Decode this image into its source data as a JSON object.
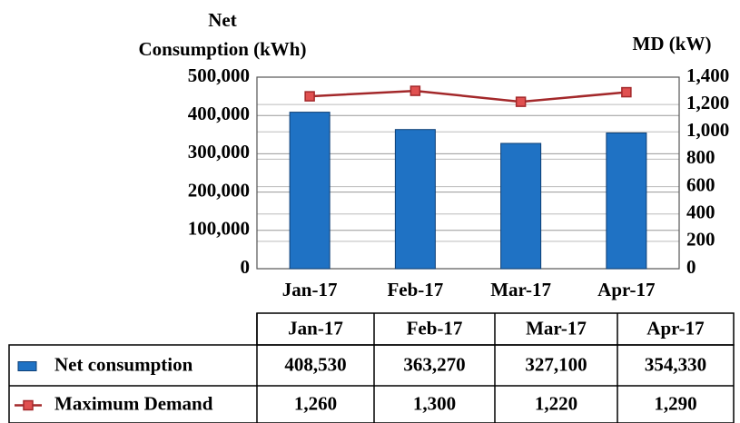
{
  "chart_data": {
    "type": "bar",
    "ylabel": "Net\nConsumption (kWh)",
    "y2label": "MD (kW)",
    "categories": [
      "Jan-17",
      "Feb-17",
      "Mar-17",
      "Apr-17"
    ],
    "series": [
      {
        "name": "Net consumption",
        "type": "bar",
        "color": "#1f72c4",
        "values": [
          408530,
          363270,
          327100,
          354330
        ],
        "value_labels": [
          "408,530",
          "363,270",
          "327,100",
          "354,330"
        ]
      },
      {
        "name": "Maximum Demand",
        "type": "line",
        "axis": "y2",
        "color": "#a3282a",
        "marker_color": "#e05050",
        "values": [
          1260,
          1300,
          1220,
          1290
        ],
        "value_labels": [
          "1,260",
          "1,300",
          "1,220",
          "1,290"
        ]
      }
    ],
    "ylim": [
      0,
      500000
    ],
    "yticks": [
      0,
      {
        "value": 100000,
        "label": "100,000"
      },
      {
        "value": 200000,
        "label": "200,000"
      },
      {
        "value": 300000,
        "label": "300,000"
      },
      {
        "value": 400000,
        "label": "400,000"
      },
      {
        "value": 500000,
        "label": "500,000"
      }
    ],
    "y2lim": [
      0,
      1400
    ],
    "y2ticks": [
      0,
      200,
      400,
      600,
      800,
      {
        "value": 1000,
        "label": "1,000"
      },
      {
        "value": 1200,
        "label": "1,200"
      },
      {
        "value": 1400,
        "label": "1,400"
      }
    ],
    "grid": true
  }
}
